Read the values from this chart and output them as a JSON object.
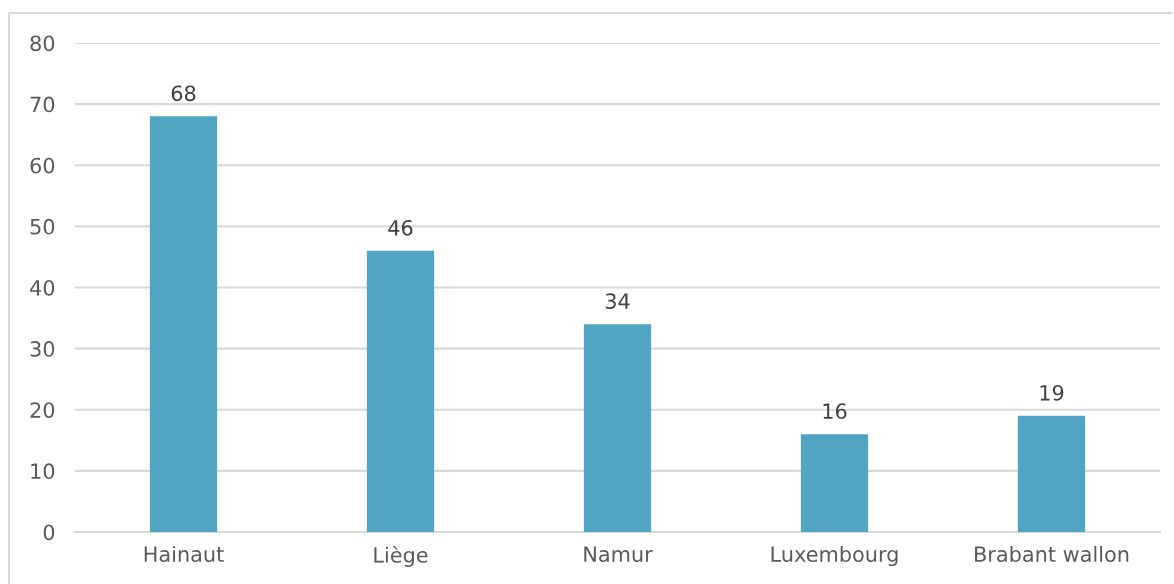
{
  "chart_data": {
    "type": "bar",
    "categories": [
      "Hainaut",
      "Liège",
      "Namur",
      "Luxembourg",
      "Brabant wallon"
    ],
    "values": [
      68,
      46,
      34,
      16,
      19
    ],
    "color": "#51a5c3",
    "ylim": [
      0,
      80
    ],
    "yticks": [
      0,
      10,
      20,
      30,
      40,
      50,
      60,
      70,
      80
    ],
    "grid": "y",
    "data_labels": true,
    "legend": false
  }
}
